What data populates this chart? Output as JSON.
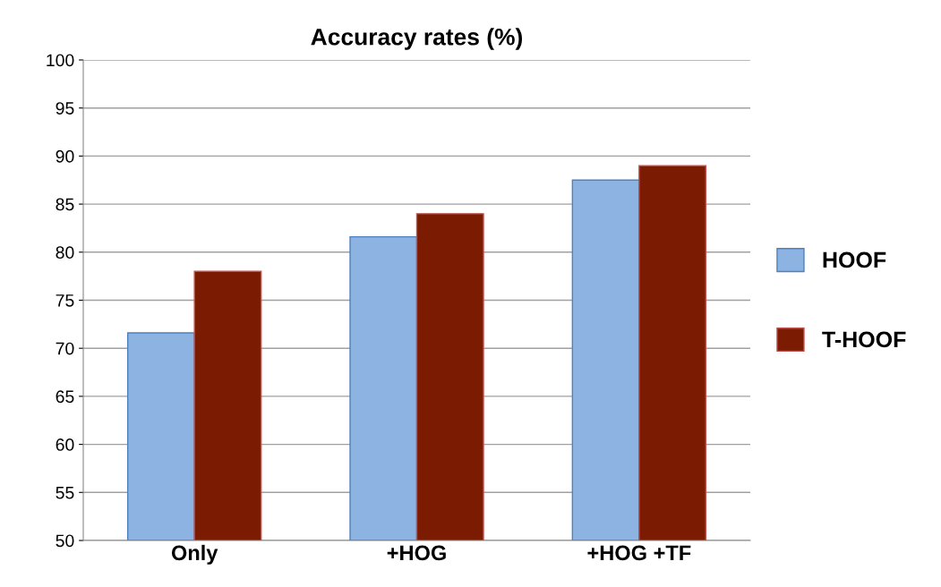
{
  "chart_data": {
    "type": "bar",
    "title": "Accuracy rates (%)",
    "categories": [
      "Only",
      "+HOG",
      "+HOG +TF"
    ],
    "series": [
      {
        "name": "HOOF",
        "color": "#8db3e2",
        "values": [
          71.6,
          81.6,
          87.5
        ]
      },
      {
        "name": "T-HOOF",
        "color": "#7b1c02",
        "values": [
          78,
          84,
          89
        ]
      }
    ],
    "ylim": [
      50,
      100
    ],
    "yticks": [
      50,
      55,
      60,
      65,
      70,
      75,
      80,
      85,
      90,
      95,
      100
    ],
    "grid": "y",
    "legend": "right"
  }
}
